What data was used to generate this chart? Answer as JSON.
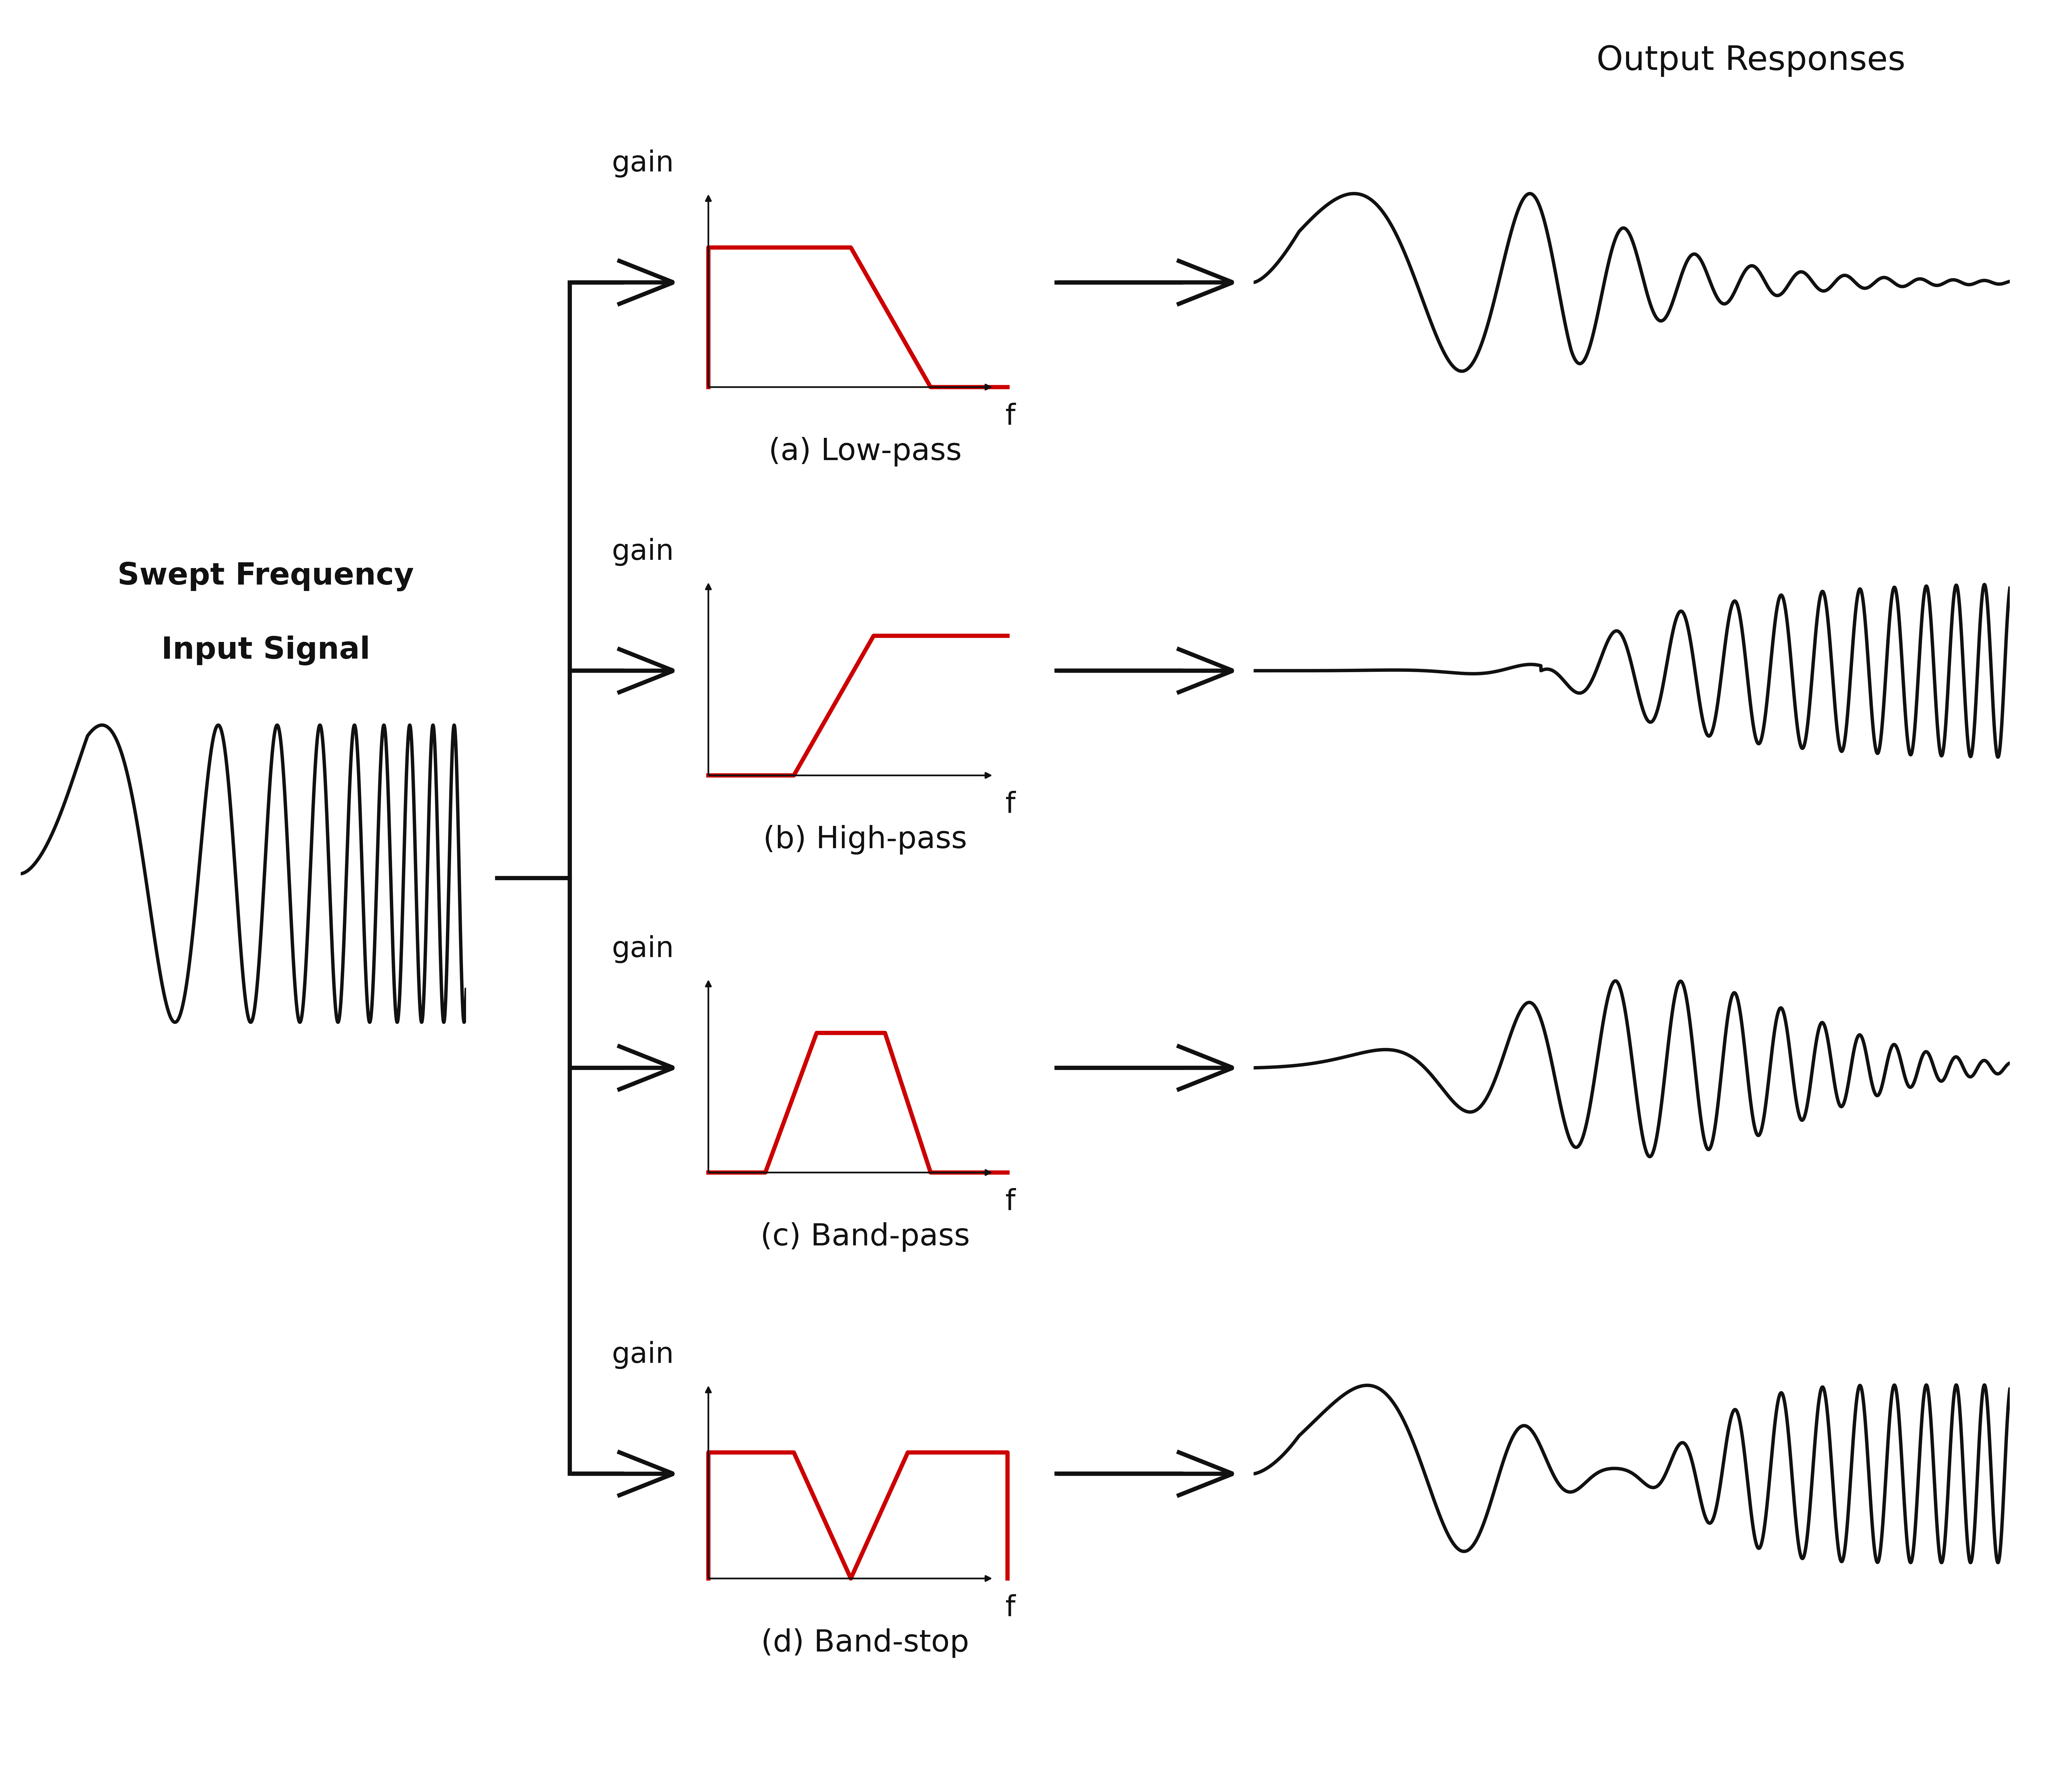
{
  "title": "Output Responses",
  "input_label_line1": "Swept Frequency",
  "input_label_line2": "Input Signal",
  "filter_labels": [
    "(a) Low-pass",
    "(b) High-pass",
    "(c) Band-pass",
    "(d) Band-stop"
  ],
  "gain_label": "gain",
  "freq_label": "f",
  "bg_color": "#ffffff",
  "line_color": "#111111",
  "filter_color": "#cc0000",
  "font_size_label": 72,
  "font_size_title": 80,
  "font_size_axis": 68,
  "lw_main": 10,
  "lw_filter": 10,
  "lw_wave": 8
}
